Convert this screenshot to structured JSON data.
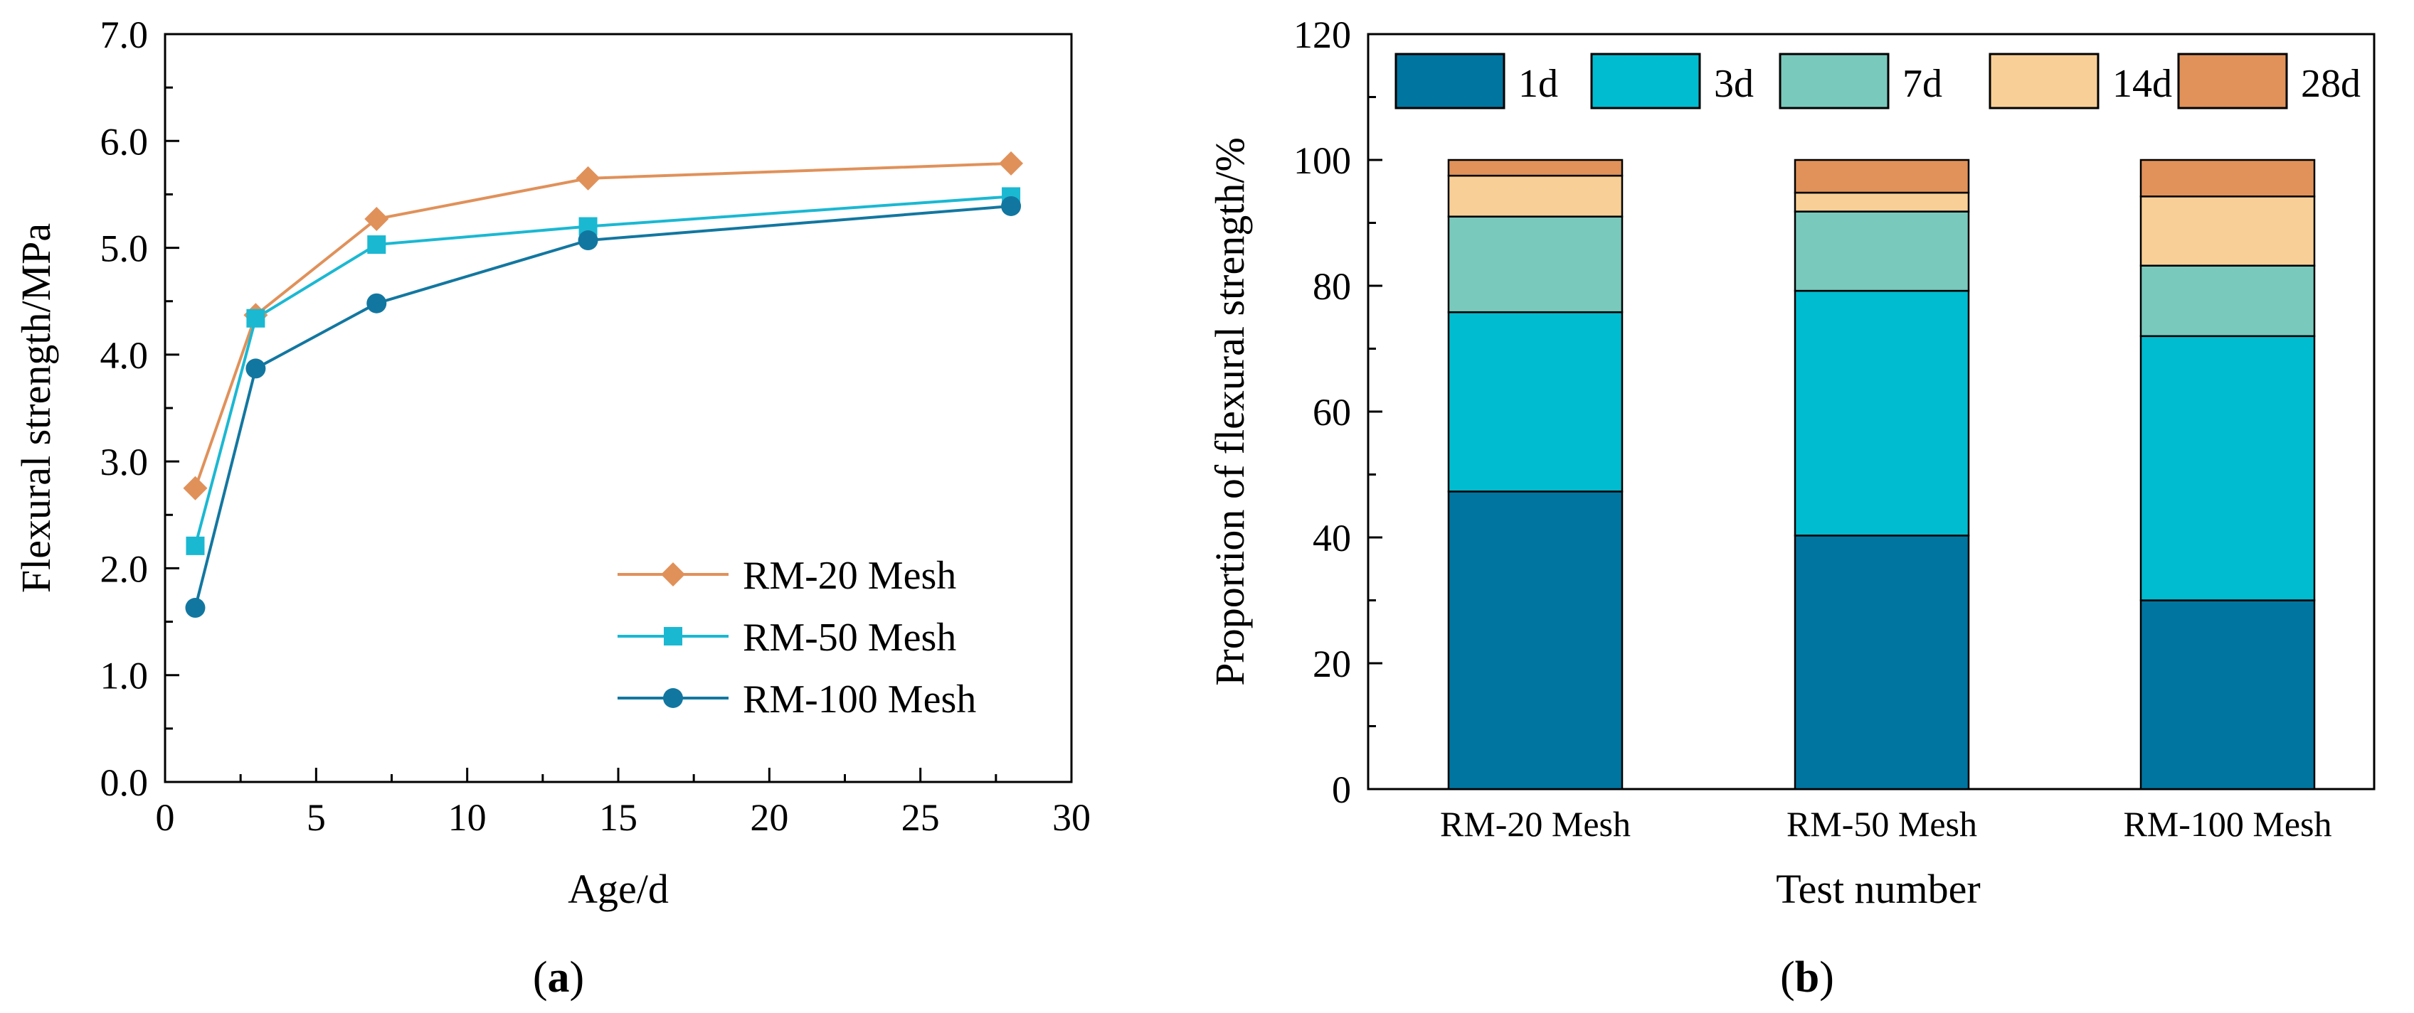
{
  "chart_data": [
    {
      "type": "line",
      "panel_label": "(a)",
      "panel_letter": "a",
      "xlabel": "Age/d",
      "ylabel": "Flexural strength/MPa",
      "xlim": [
        0,
        30
      ],
      "ylim": [
        0.0,
        7.0
      ],
      "xticks": [
        "0",
        "5",
        "10",
        "15",
        "20",
        "25",
        "30"
      ],
      "yticks": [
        "0.0",
        "1.0",
        "2.0",
        "3.0",
        "4.0",
        "5.0",
        "6.0",
        "7.0"
      ],
      "x": [
        1,
        3,
        7,
        14,
        28
      ],
      "legend_position": "bottom-right",
      "series": [
        {
          "name": "RM-20 Mesh",
          "marker": "diamond",
          "color": "#E0915A",
          "values": [
            2.75,
            4.37,
            5.27,
            5.65,
            5.79
          ]
        },
        {
          "name": "RM-50 Mesh",
          "marker": "square",
          "color": "#1BB8D2",
          "values": [
            2.21,
            4.34,
            5.03,
            5.2,
            5.48
          ]
        },
        {
          "name": "RM-100 Mesh",
          "marker": "circle",
          "color": "#1277A0",
          "values": [
            1.63,
            3.87,
            4.48,
            5.07,
            5.39
          ]
        }
      ]
    },
    {
      "type": "bar",
      "stacked": true,
      "panel_label": "(b)",
      "panel_letter": "b",
      "xlabel": "Test number",
      "ylabel": "Proportion of flexural strength/%",
      "ylim": [
        0,
        120
      ],
      "yticks": [
        "0",
        "20",
        "40",
        "60",
        "80",
        "100",
        "120"
      ],
      "categories": [
        "RM-20 Mesh",
        "RM-50 Mesh",
        "RM-100 Mesh"
      ],
      "legend_position": "top",
      "series": [
        {
          "name": "1d",
          "color": "#00759F",
          "values": [
            47.3,
            40.3,
            30.0
          ]
        },
        {
          "name": "3d",
          "color": "#00BCD0",
          "values": [
            28.5,
            38.9,
            42.0
          ]
        },
        {
          "name": "7d",
          "color": "#79C9BC",
          "values": [
            15.2,
            12.6,
            11.2
          ]
        },
        {
          "name": "14d",
          "color": "#F8CF96",
          "values": [
            6.5,
            3.0,
            11.0
          ]
        },
        {
          "name": "28d",
          "color": "#E0925A",
          "values": [
            2.5,
            5.2,
            5.8
          ]
        }
      ]
    }
  ]
}
